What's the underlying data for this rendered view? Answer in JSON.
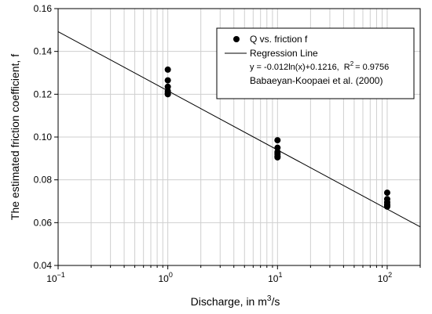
{
  "chart_data": {
    "type": "scatter",
    "xscale": "log",
    "xlim": [
      0.1,
      200
    ],
    "ylim": [
      0.04,
      0.16
    ],
    "grid": true,
    "xlabel_parts": [
      "Discharge, in m",
      "3",
      "/s"
    ],
    "ylabel": "The estimated friction coefficient, f",
    "x_ticks": [
      {
        "value": 0.1,
        "base": "10",
        "exp": "−1"
      },
      {
        "value": 1,
        "base": "10",
        "exp": "0"
      },
      {
        "value": 10,
        "base": "10",
        "exp": "1"
      },
      {
        "value": 100,
        "base": "10",
        "exp": "2"
      }
    ],
    "y_ticks": [
      "0.04",
      "0.06",
      "0.08",
      "0.10",
      "0.12",
      "0.14",
      "0.16"
    ],
    "legend_position": "top-right",
    "legend": {
      "points_label": "Q vs. friction f",
      "line_label": "Regression Line",
      "equation": "y = -0.012ln(x)+0.1216,",
      "r2_text": "R",
      "r2_sup": "2",
      "r2_value": "= 0.9756",
      "reference": "Babaeyan-Koopaei et al. (2000)"
    },
    "series": [
      {
        "name": "Q vs. friction f",
        "kind": "points",
        "color": "#000000",
        "x": [
          1,
          1,
          1,
          1,
          1,
          1,
          10,
          10,
          10,
          10,
          10,
          10,
          100,
          100,
          100,
          100,
          100,
          100
        ],
        "y": [
          0.1315,
          0.1265,
          0.1235,
          0.1215,
          0.1205,
          0.12,
          0.0985,
          0.095,
          0.093,
          0.092,
          0.091,
          0.0905,
          0.074,
          0.071,
          0.0695,
          0.0685,
          0.068,
          0.0675
        ]
      },
      {
        "name": "Regression Line",
        "kind": "line",
        "color": "#000000",
        "intercept": 0.1216,
        "slope": -0.012
      }
    ]
  }
}
